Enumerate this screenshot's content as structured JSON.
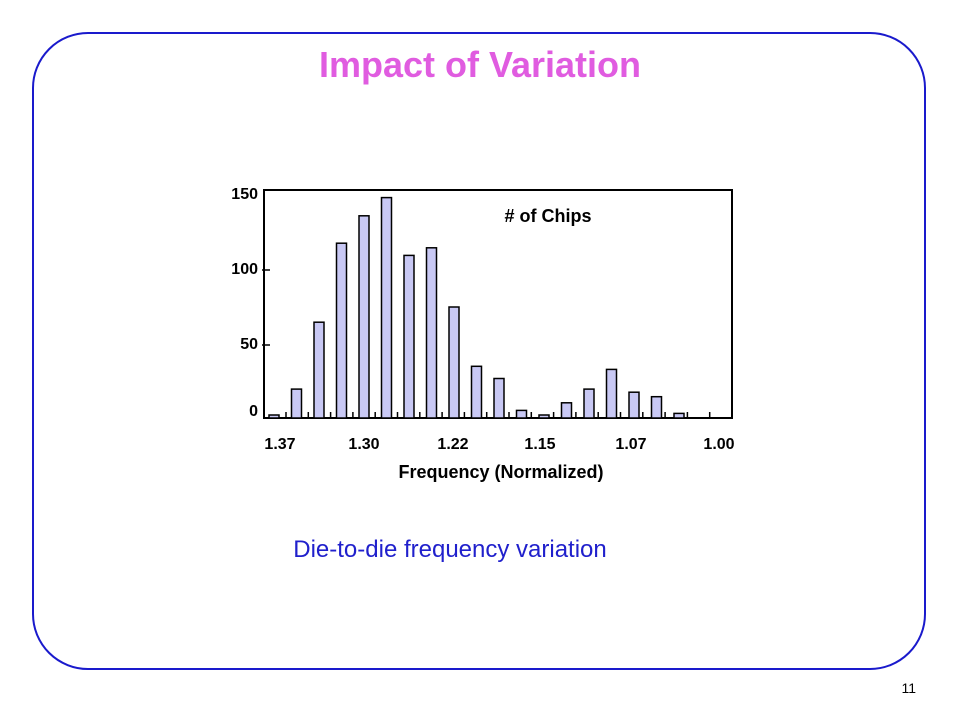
{
  "slide": {
    "title": "Impact of Variation",
    "caption": "Die-to-die frequency variation",
    "page_number": "11",
    "colors": {
      "title": "#e05ce0",
      "caption": "#2020cc",
      "frame": "#1a1acc",
      "bar_fill": "#c8c8f4"
    }
  },
  "chart_data": {
    "type": "bar",
    "title": "# of Chips",
    "xlabel": "Frequency (Normalized)",
    "ylabel": "",
    "x_ticks": [
      "1.37",
      "1.30",
      "1.22",
      "1.15",
      "1.07",
      "1.00"
    ],
    "y_ticks": [
      "0",
      "50",
      "100",
      "150"
    ],
    "ylim": [
      0,
      150
    ],
    "values": [
      2,
      19,
      63,
      115,
      133,
      145,
      107,
      112,
      73,
      34,
      26,
      5,
      2,
      10,
      19,
      32,
      17,
      14,
      3
    ],
    "grid": false
  }
}
